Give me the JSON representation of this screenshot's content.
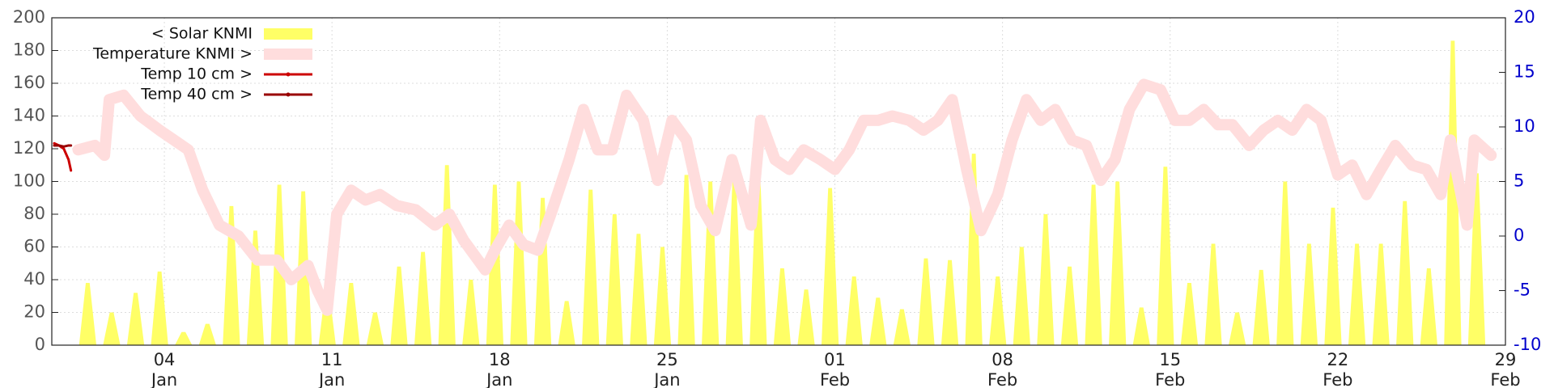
{
  "chart_data": {
    "type": "combo",
    "xlim": [
      -0.7,
      60
    ],
    "xticks": [
      {
        "value": 4,
        "label": "04\nJan"
      },
      {
        "value": 11,
        "label": "11\nJan"
      },
      {
        "value": 18,
        "label": "18\nJan"
      },
      {
        "value": 25,
        "label": "25\nJan"
      },
      {
        "value": 32,
        "label": "01\nFeb"
      },
      {
        "value": 39,
        "label": "08\nFeb"
      },
      {
        "value": 46,
        "label": "15\nFeb"
      },
      {
        "value": 53,
        "label": "22\nFeb"
      },
      {
        "value": 60,
        "label": "29\nFeb"
      }
    ],
    "ylim": [
      0,
      200
    ],
    "yticks": [
      0,
      20,
      40,
      60,
      80,
      100,
      120,
      140,
      160,
      180,
      200
    ],
    "y2lim": [
      -10,
      20
    ],
    "y2ticks": [
      -10,
      -5,
      0,
      5,
      10,
      15,
      20
    ],
    "y2color": "#0000cc",
    "grid": true,
    "legend": "upper left",
    "series": [
      {
        "name": "< Solar KNMI",
        "type": "bar",
        "color": "#ffff66",
        "x": [
          0.8,
          1.8,
          2.8,
          3.8,
          4.8,
          5.8,
          6.8,
          7.8,
          8.8,
          9.8,
          10.8,
          11.8,
          12.8,
          13.8,
          14.8,
          15.8,
          16.8,
          17.8,
          18.8,
          19.8,
          20.8,
          21.8,
          22.8,
          23.8,
          24.8,
          25.8,
          26.8,
          27.8,
          28.8,
          29.8,
          30.8,
          31.8,
          32.8,
          33.8,
          34.8,
          35.8,
          36.8,
          37.8,
          38.8,
          39.8,
          40.8,
          41.8,
          42.8,
          43.8,
          44.8,
          45.8,
          46.8,
          47.8,
          48.8,
          49.8,
          50.8,
          51.8,
          52.8,
          53.8,
          54.8,
          55.8,
          56.8,
          57.8,
          58.8
        ],
        "values": [
          38,
          20,
          32,
          45,
          8,
          13,
          85,
          70,
          98,
          94,
          33,
          38,
          20,
          48,
          57,
          110,
          40,
          98,
          100,
          90,
          27,
          95,
          80,
          68,
          60,
          104,
          100,
          100,
          105,
          47,
          34,
          96,
          42,
          29,
          22,
          53,
          52,
          117,
          42,
          60,
          80,
          48,
          98,
          100,
          23,
          109,
          38,
          62,
          20,
          46,
          100,
          62,
          84,
          62,
          62,
          88,
          47,
          186,
          105
        ]
      },
      {
        "name": "Temperature KNMI >",
        "type": "line",
        "axis": "y2",
        "color": "#ffdddd",
        "width": 14,
        "x": [
          0.4,
          1.1,
          1.5,
          1.7,
          2.3,
          3.0,
          3.8,
          4.4,
          5.0,
          5.6,
          6.3,
          7.1,
          7.9,
          8.7,
          9.3,
          10.0,
          10.4,
          10.8,
          11.2,
          11.8,
          12.4,
          13.0,
          13.7,
          14.5,
          15.3,
          15.9,
          16.5,
          17.4,
          17.8,
          18.4,
          19.0,
          19.6,
          20.2,
          20.9,
          21.5,
          22.1,
          22.7,
          23.3,
          24.0,
          24.6,
          25.2,
          25.8,
          26.4,
          27.0,
          27.7,
          28.5,
          28.9,
          29.5,
          30.1,
          30.7,
          31.4,
          32.0,
          32.6,
          33.2,
          33.8,
          34.4,
          35.1,
          35.7,
          36.3,
          36.9,
          37.5,
          38.1,
          38.8,
          39.4,
          40.0,
          40.6,
          41.2,
          41.9,
          42.5,
          43.1,
          43.7,
          44.3,
          44.9,
          45.6,
          46.2,
          46.8,
          47.4,
          48.0,
          48.6,
          49.3,
          49.9,
          50.5,
          51.1,
          51.7,
          52.3,
          53.0,
          53.6,
          54.2,
          54.8,
          55.4,
          56.1,
          56.7,
          57.3,
          57.7,
          58.4,
          58.7,
          59.4
        ],
        "values": [
          7.9,
          8.3,
          7.4,
          12.5,
          12.9,
          11,
          9.7,
          8.8,
          7.9,
          4.2,
          1,
          0,
          -2.2,
          -2.2,
          -4,
          -2.7,
          -5,
          -6.8,
          2,
          4.2,
          3.3,
          3.8,
          2.8,
          2.4,
          1,
          2,
          -0.4,
          -3.1,
          -1.3,
          1,
          -0.8,
          -1.3,
          2.4,
          7,
          11.6,
          7.9,
          7.9,
          12.9,
          10.6,
          5.1,
          10.6,
          8.8,
          2.8,
          0.5,
          7,
          1,
          10.6,
          7,
          6.1,
          7.9,
          7,
          6.1,
          7.9,
          10.6,
          10.6,
          11,
          10.6,
          9.7,
          10.6,
          12.5,
          6.1,
          0.5,
          3.8,
          8.8,
          12.5,
          10.6,
          11.6,
          8.8,
          8.3,
          5.1,
          7,
          11.6,
          13.9,
          13.4,
          10.6,
          10.6,
          11.6,
          10.2,
          10.2,
          8.3,
          9.7,
          10.6,
          9.7,
          11.6,
          10.6,
          5.6,
          6.5,
          3.8,
          6.1,
          8.3,
          6.5,
          6.1,
          3.8,
          8.8,
          1,
          8.8,
          7.4
        ]
      },
      {
        "name": "Temp 10 cm >",
        "type": "line",
        "axis": "y2",
        "color": "#cc0000",
        "width": 3,
        "x": [
          -0.6,
          -0.4,
          -0.2,
          0,
          0.1
        ],
        "values": [
          8.5,
          8.3,
          8.0,
          7.0,
          6.0
        ]
      },
      {
        "name": "Temp 40 cm >",
        "type": "line",
        "axis": "y2",
        "color": "#990000",
        "width": 3,
        "x": [
          -0.6,
          -0.4,
          -0.2,
          0,
          0.1
        ],
        "values": [
          8.3,
          8.3,
          8.2,
          8.3,
          8.3
        ]
      }
    ]
  }
}
